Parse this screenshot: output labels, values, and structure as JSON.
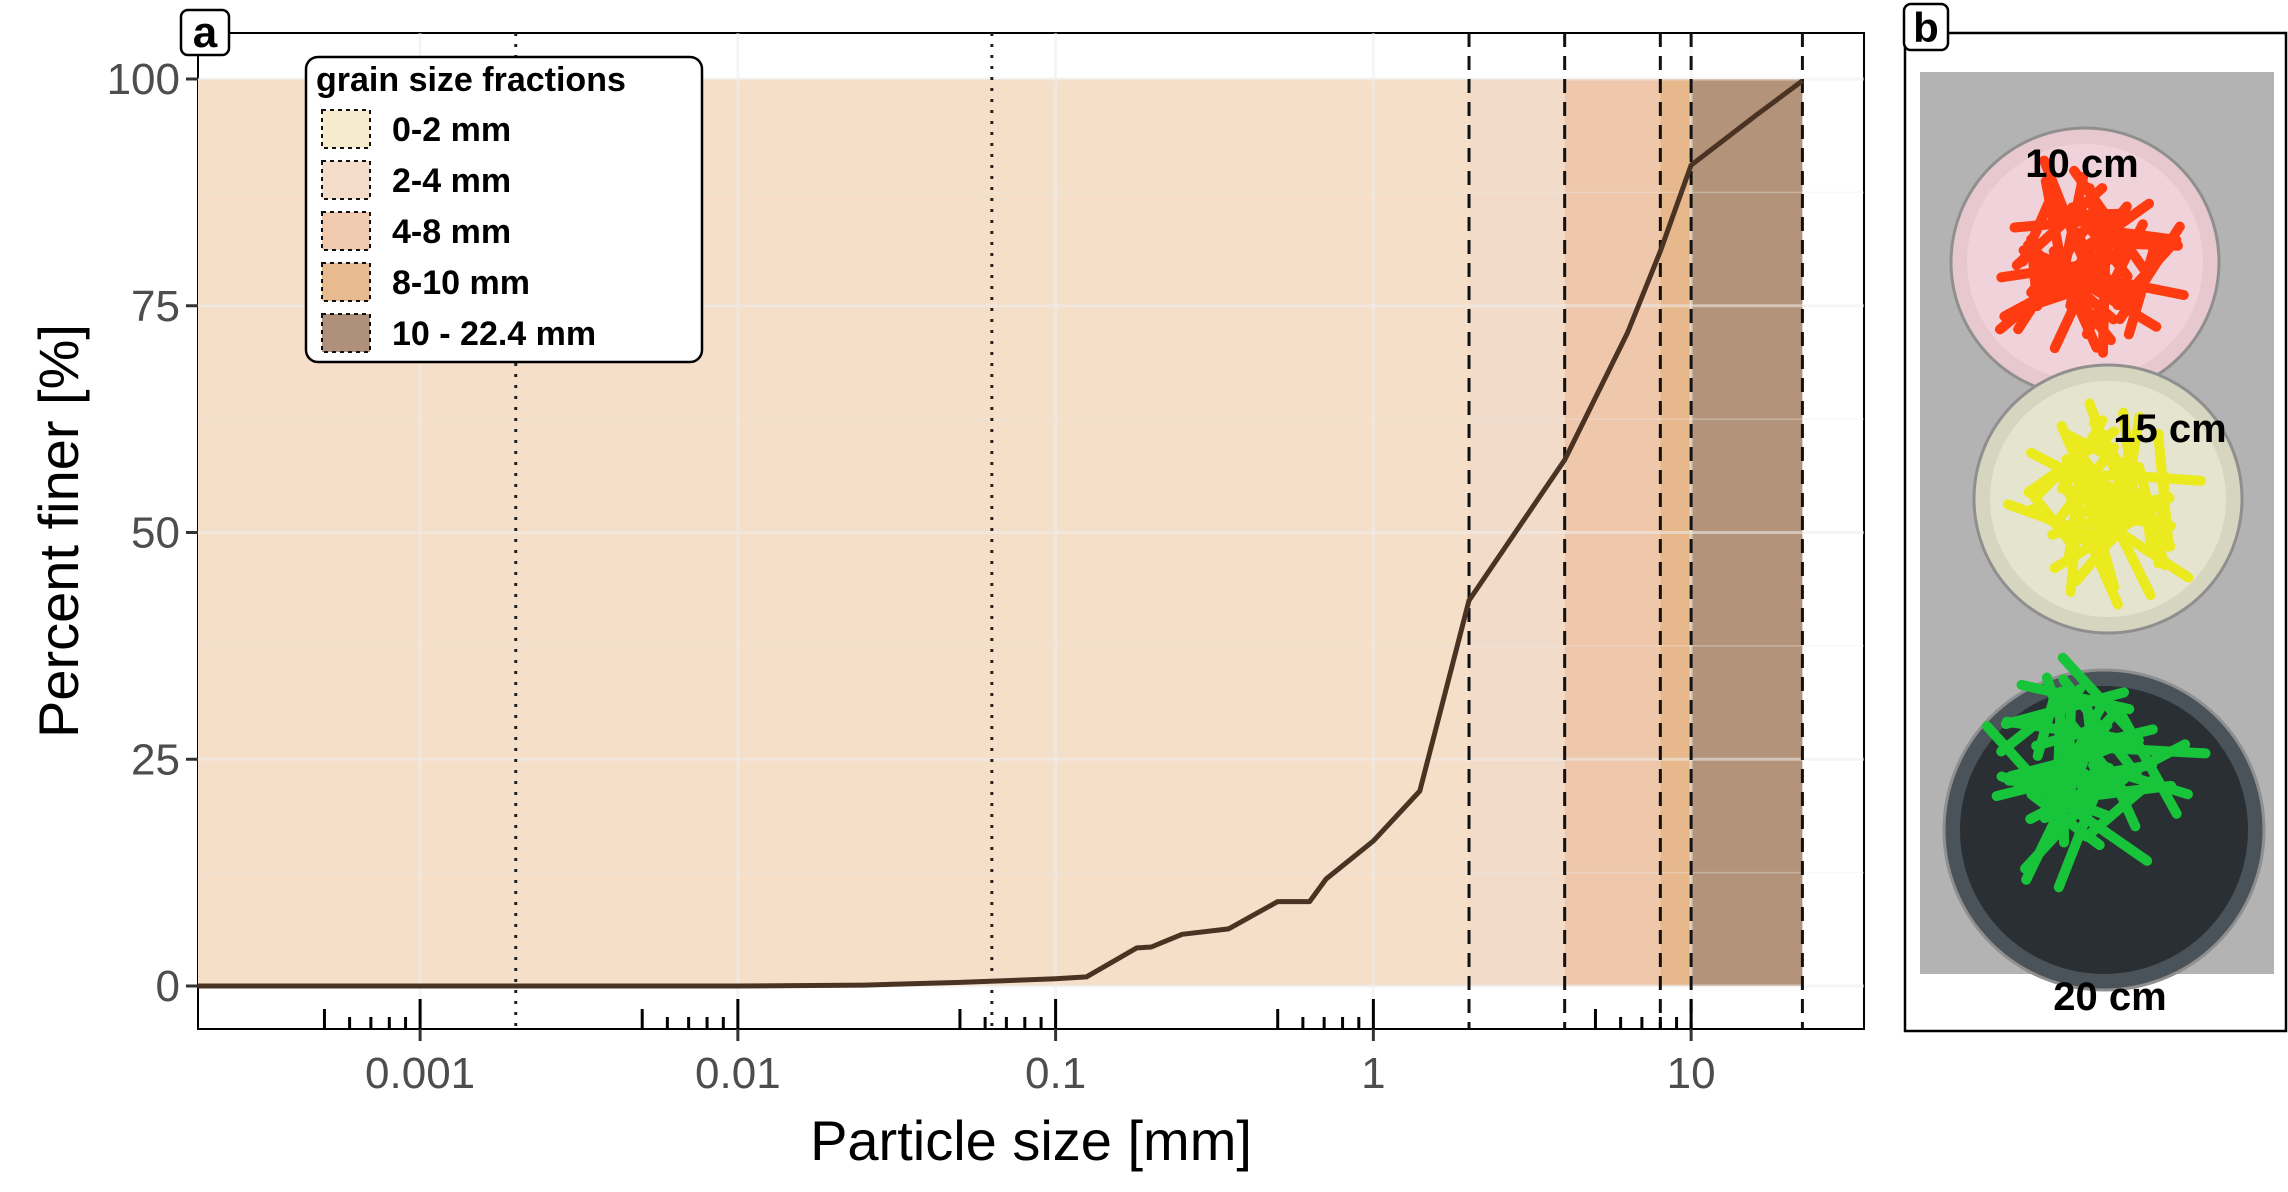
{
  "panel_a_label": "a",
  "panel_b_label": "b",
  "chart_data": {
    "type": "line",
    "x_scale": "log",
    "xlabel": "Particle size [mm]",
    "ylabel": "Percent finer [%]",
    "xlim": [
      0.0002,
      35
    ],
    "ylim": [
      0,
      100
    ],
    "grid": true,
    "x_ticks": [
      {
        "value": 0.001,
        "label": "0.001"
      },
      {
        "value": 0.01,
        "label": "0.01"
      },
      {
        "value": 0.1,
        "label": "0.1"
      },
      {
        "value": 1,
        "label": "1"
      },
      {
        "value": 10,
        "label": "10"
      }
    ],
    "y_ticks": [
      {
        "value": 0,
        "label": "0"
      },
      {
        "value": 25,
        "label": "25"
      },
      {
        "value": 50,
        "label": "50"
      },
      {
        "value": 75,
        "label": "75"
      },
      {
        "value": 100,
        "label": "100"
      }
    ],
    "series": [
      {
        "color": "#4a3322",
        "x": [
          0.0002,
          0.001,
          0.01,
          0.025,
          0.05,
          0.1,
          0.125,
          0.18,
          0.2,
          0.25,
          0.35,
          0.5,
          0.63,
          0.71,
          1,
          1.4,
          2,
          4,
          6.3,
          8,
          10,
          16,
          22.4
        ],
        "y": [
          0,
          0,
          0,
          0.1,
          0.4,
          0.8,
          1,
          4.2,
          4.3,
          5.7,
          6.3,
          9.3,
          9.3,
          11.8,
          16,
          21.5,
          42.5,
          58,
          72,
          81,
          90.5,
          96,
          99.8
        ]
      }
    ],
    "fraction_bands": [
      {
        "from": 0.0002,
        "to": 2,
        "color": "#f5dfc8"
      },
      {
        "from": 2,
        "to": 4,
        "color": "#f2dbc9"
      },
      {
        "from": 4,
        "to": 8,
        "color": "#efc8ac"
      },
      {
        "from": 8,
        "to": 10,
        "color": "#e6b88c"
      },
      {
        "from": 10,
        "to": 22.4,
        "color": "#b3947a"
      }
    ],
    "dotted_lines": [
      0.002,
      0.063
    ],
    "dashed_lines": [
      2,
      4,
      8,
      10,
      22.4
    ],
    "legend": {
      "title": "grain size fractions",
      "position": "top-left",
      "items": [
        {
          "label": "0-2 mm",
          "color": "#f7ebce"
        },
        {
          "label": "2-4 mm",
          "color": "#f3dcca"
        },
        {
          "label": "4-8 mm",
          "color": "#efc9b0"
        },
        {
          "label": "8-10 mm",
          "color": "#e7bb8f"
        },
        {
          "label": "10 - 22.4 mm",
          "color": "#ae907b"
        }
      ]
    }
  },
  "photo": {
    "buckets": [
      {
        "label": "10 cm",
        "rod_color": "#ff3b12",
        "rim_color": "#e8c8cf",
        "inner_color": "#f0d3da"
      },
      {
        "label": "15 cm",
        "rod_color": "#eaea1f",
        "rim_color": "#d5d5c0",
        "inner_color": "#e4e4cf"
      },
      {
        "label": "20 cm",
        "rod_color": "#18c43a",
        "rim_color": "#4b535a",
        "inner_color": "#2a2f33"
      }
    ]
  }
}
